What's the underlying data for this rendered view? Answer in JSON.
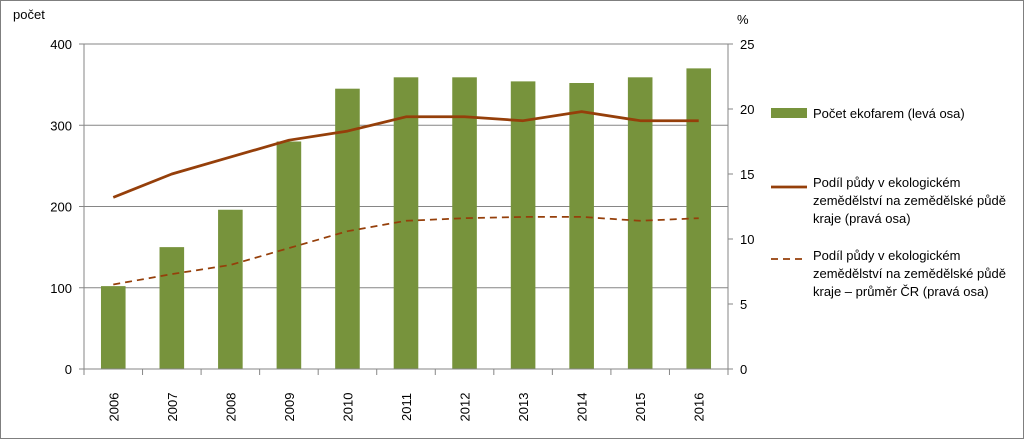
{
  "chart_data": {
    "type": "bar+line",
    "categories": [
      "2006",
      "2007",
      "2008",
      "2009",
      "2010",
      "2011",
      "2012",
      "2013",
      "2014",
      "2015",
      "2016"
    ],
    "left_axis": {
      "label": "počet",
      "min": 0,
      "max": 400,
      "ticks": [
        "0",
        "100",
        "200",
        "300",
        "400"
      ]
    },
    "right_axis": {
      "label": "%",
      "min": 0,
      "max": 25,
      "ticks": [
        "0",
        "5",
        "10",
        "15",
        "20",
        "25"
      ]
    },
    "grid": true,
    "legend_position": "right",
    "series": [
      {
        "name": "Počet ekofarem (levá osa)",
        "type": "bar",
        "axis": "left",
        "color": "#77933c",
        "values": [
          102,
          150,
          196,
          280,
          345,
          359,
          359,
          354,
          352,
          359,
          370
        ]
      },
      {
        "name": "Podíl půdy v ekologickém zemědělství na zemědělské půdě kraje (pravá osa)",
        "type": "line",
        "axis": "right",
        "color": "#953f0a",
        "dashed": false,
        "values": [
          13.2,
          15.0,
          16.3,
          17.6,
          18.3,
          19.4,
          19.4,
          19.1,
          19.8,
          19.1,
          19.1
        ]
      },
      {
        "name": "Podíl půdy v ekologickém zemědělství na zemědělské půdě kraje – průměr ČR (pravá osa)",
        "type": "line",
        "axis": "right",
        "color": "#953f0a",
        "dashed": true,
        "values": [
          6.5,
          7.3,
          8.0,
          9.3,
          10.6,
          11.4,
          11.6,
          11.7,
          11.7,
          11.4,
          11.6
        ]
      }
    ]
  },
  "legend": {
    "items": [
      {
        "lines": [
          "Počet ekofarem (levá osa)"
        ]
      },
      {
        "lines": [
          "Podíl půdy v ekologickém",
          "zemědělství na zemědělské půdě",
          "kraje (pravá osa)"
        ]
      },
      {
        "lines": [
          "Podíl půdy v ekologickém",
          "zemědělství na zemědělské půdě",
          "kraje – průměr ČR (pravá osa)"
        ]
      }
    ]
  }
}
